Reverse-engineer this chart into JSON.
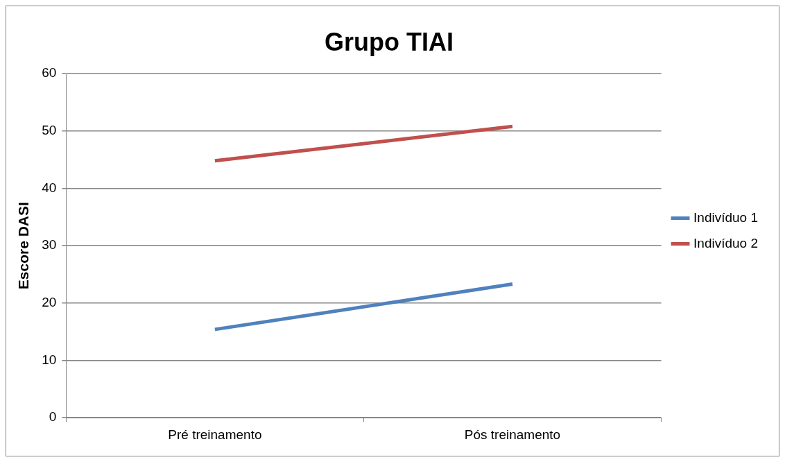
{
  "chart_data": {
    "type": "line",
    "title": "Grupo TIAI",
    "ylabel": "Escore DASI",
    "categories": [
      "Pré treinamento",
      "Pós treinamento"
    ],
    "series": [
      {
        "name": "Indivíduo 1",
        "color": "#4f81bd",
        "values": [
          15.4,
          23.3
        ]
      },
      {
        "name": "Indivíduo 2",
        "color": "#c0504d",
        "values": [
          44.8,
          50.8
        ]
      }
    ],
    "ylim": [
      0,
      60
    ],
    "yticks": [
      0,
      10,
      20,
      30,
      40,
      50,
      60
    ],
    "grid": "y",
    "legend": "right",
    "marker": "none",
    "line_style": "solid"
  }
}
